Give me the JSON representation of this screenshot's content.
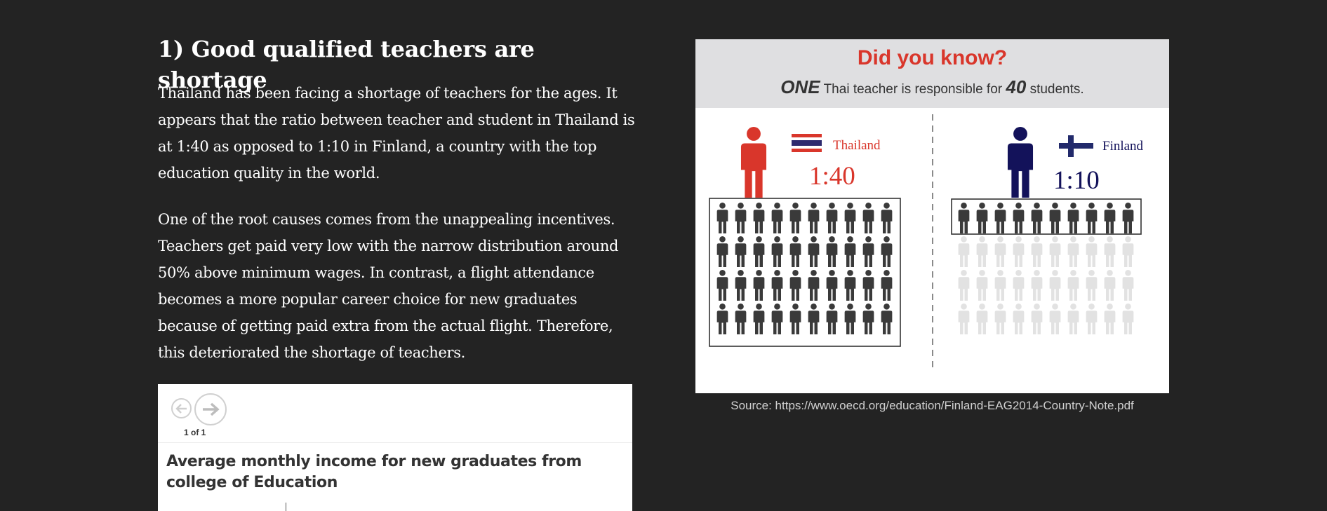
{
  "article": {
    "heading": "1) Good qualified teachers are shortage",
    "paragraph1": "Thailand has been facing a shortage of teachers for the ages. It appears that the ratio between teacher and student in Thailand is at 1:40 as opposed to 1:10 in Finland, a country with the top education quality in the world.",
    "paragraph2": "One of the root causes comes from the unappealing incentives. Teachers get paid very low with the narrow distribution around 50% above minimum wages. In contrast, a flight attendance becomes a more popular career choice for new graduates because of getting paid extra from the actual flight. Therefore, this deteriorated the shortage of teachers."
  },
  "chart_embed": {
    "pager": "1 of 1",
    "title": "Average monthly income for new graduates from college of Education",
    "prev_icon": "arrow-left-icon",
    "next_icon": "arrow-right-icon"
  },
  "infographic": {
    "title": "Did you know?",
    "subtitle_lead": "ONE",
    "subtitle_mid": " Thai teacher is responsible for ",
    "subtitle_num": "40",
    "subtitle_end": " students.",
    "thailand": {
      "country": "Thailand",
      "ratio": "1:40",
      "color": "#d9362b",
      "students": 40
    },
    "finland": {
      "country": "Finland",
      "ratio": "1:10",
      "color": "#13125a",
      "students": 10
    },
    "student_color": "#3a3a3a",
    "student_faded_color": "#e2e2e2"
  },
  "source": "Source: https://www.oecd.org/education/Finland-EAG2014-Country-Note.pdf"
}
